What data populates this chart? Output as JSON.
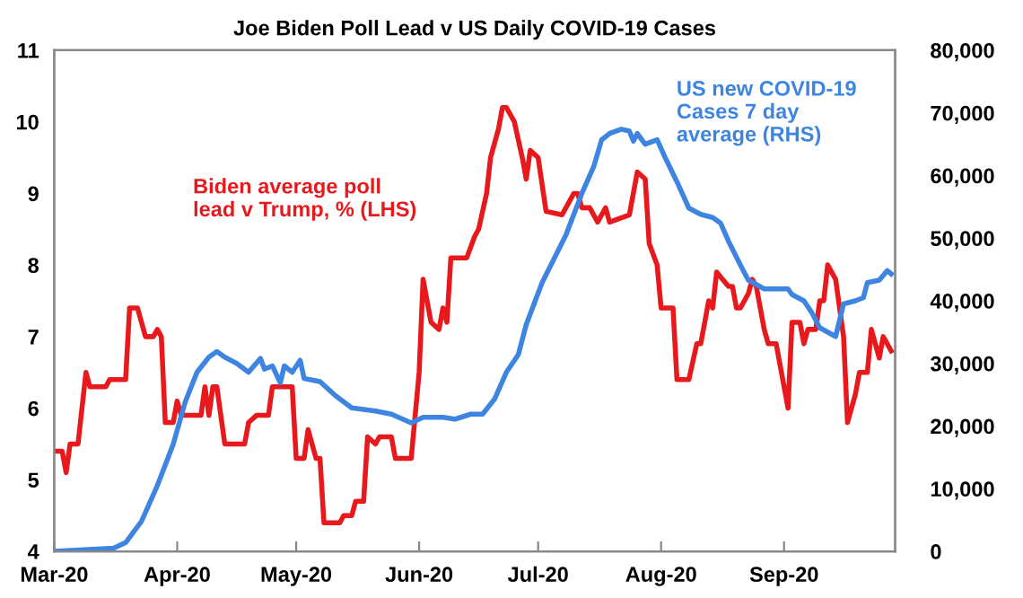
{
  "chart_data": {
    "type": "line",
    "title": "Joe Biden Poll Lead v US Daily COVID-19 Cases",
    "xlim": [
      "2020-03-01",
      "2020-09-29"
    ],
    "xticks": [
      {
        "value": "2020-03-01",
        "label": "Mar-20"
      },
      {
        "value": "2020-04-01",
        "label": "Apr-20"
      },
      {
        "value": "2020-05-01",
        "label": "May-20"
      },
      {
        "value": "2020-06-01",
        "label": "Jun-20"
      },
      {
        "value": "2020-07-01",
        "label": "Jul-20"
      },
      {
        "value": "2020-08-01",
        "label": "Aug-20"
      },
      {
        "value": "2020-09-01",
        "label": "Sep-20"
      }
    ],
    "ylim": [
      4,
      11
    ],
    "yticks": [
      4,
      5,
      6,
      7,
      8,
      9,
      10,
      11
    ],
    "y2lim": [
      0,
      80000
    ],
    "y2ticks": [
      0,
      {
        "value": 10000,
        "label": "10,000"
      },
      {
        "value": 20000,
        "label": "20,000"
      },
      {
        "value": 30000,
        "label": "30,000"
      },
      {
        "value": 40000,
        "label": "40,000"
      },
      {
        "value": 50000,
        "label": "50,000"
      },
      {
        "value": 60000,
        "label": "60,000"
      },
      {
        "value": 70000,
        "label": "70,000"
      },
      {
        "value": 80000,
        "label": "80,000"
      }
    ],
    "grid": false,
    "legend": false,
    "marker": "none",
    "line_style": "solid",
    "series": [
      {
        "name": "Biden average poll lead v Trump, % (LHS)",
        "color": "#e8191d",
        "x": [
          "2020-03-01",
          "2020-03-03",
          "2020-03-04",
          "2020-03-05",
          "2020-03-07",
          "2020-03-09",
          "2020-03-10",
          "2020-03-14",
          "2020-03-15",
          "2020-03-19",
          "2020-03-20",
          "2020-03-22",
          "2020-03-24",
          "2020-03-26",
          "2020-03-27",
          "2020-03-28",
          "2020-03-29",
          "2020-03-31",
          "2020-04-01",
          "2020-04-02",
          "2020-04-07",
          "2020-04-08",
          "2020-04-09",
          "2020-04-10",
          "2020-04-11",
          "2020-04-13",
          "2020-04-18",
          "2020-04-19",
          "2020-04-21",
          "2020-04-24",
          "2020-04-25",
          "2020-04-30",
          "2020-05-01",
          "2020-05-03",
          "2020-05-04",
          "2020-05-06",
          "2020-05-07",
          "2020-05-08",
          "2020-05-12",
          "2020-05-13",
          "2020-05-15",
          "2020-05-16",
          "2020-05-18",
          "2020-05-19",
          "2020-05-21",
          "2020-05-22",
          "2020-05-25",
          "2020-05-26",
          "2020-05-30",
          "2020-06-01",
          "2020-06-02",
          "2020-06-04",
          "2020-06-06",
          "2020-06-07",
          "2020-06-08",
          "2020-06-09",
          "2020-06-13",
          "2020-06-15",
          "2020-06-16",
          "2020-06-18",
          "2020-06-19",
          "2020-06-21",
          "2020-06-22",
          "2020-06-23",
          "2020-06-25",
          "2020-06-27",
          "2020-06-28",
          "2020-06-29",
          "2020-07-01",
          "2020-07-03",
          "2020-07-07",
          "2020-07-10",
          "2020-07-11",
          "2020-07-12",
          "2020-07-14",
          "2020-07-16",
          "2020-07-18",
          "2020-07-19",
          "2020-07-24",
          "2020-07-26",
          "2020-07-28",
          "2020-07-29",
          "2020-07-31",
          "2020-08-01",
          "2020-08-04",
          "2020-08-05",
          "2020-08-08",
          "2020-08-10",
          "2020-08-11",
          "2020-08-13",
          "2020-08-14",
          "2020-08-15",
          "2020-08-18",
          "2020-08-19",
          "2020-08-20",
          "2020-08-21",
          "2020-08-23",
          "2020-08-24",
          "2020-08-25",
          "2020-08-27",
          "2020-08-28",
          "2020-08-30",
          "2020-09-02",
          "2020-09-03",
          "2020-09-05",
          "2020-09-06",
          "2020-09-07",
          "2020-09-09",
          "2020-09-10",
          "2020-09-11",
          "2020-09-12",
          "2020-09-14",
          "2020-09-16",
          "2020-09-17",
          "2020-09-19",
          "2020-09-20",
          "2020-09-22",
          "2020-09-23",
          "2020-09-25",
          "2020-09-26",
          "2020-09-28"
        ],
        "values": [
          5.4,
          5.4,
          5.1,
          5.5,
          5.5,
          6.5,
          6.3,
          6.3,
          6.4,
          6.4,
          7.4,
          7.4,
          7.0,
          7.0,
          7.1,
          7.0,
          5.8,
          5.8,
          6.1,
          5.9,
          5.9,
          6.3,
          5.9,
          6.3,
          6.3,
          5.5,
          5.5,
          5.8,
          5.9,
          5.9,
          6.3,
          6.3,
          5.3,
          5.3,
          5.7,
          5.3,
          5.3,
          4.4,
          4.4,
          4.5,
          4.5,
          4.7,
          4.7,
          5.6,
          5.5,
          5.6,
          5.6,
          5.3,
          5.3,
          6.5,
          7.8,
          7.2,
          7.1,
          7.4,
          7.2,
          8.1,
          8.1,
          8.4,
          8.5,
          9.0,
          9.5,
          9.9,
          10.2,
          10.2,
          10.0,
          9.5,
          9.2,
          9.6,
          9.5,
          8.75,
          8.7,
          9.0,
          9.0,
          8.8,
          8.8,
          8.6,
          8.8,
          8.6,
          8.7,
          9.3,
          9.2,
          8.3,
          8.0,
          7.4,
          7.4,
          6.4,
          6.4,
          6.9,
          6.9,
          7.5,
          7.4,
          7.9,
          7.7,
          7.7,
          7.4,
          7.4,
          7.6,
          7.8,
          7.7,
          7.1,
          6.9,
          6.9,
          6.0,
          7.2,
          7.2,
          6.9,
          7.1,
          7.1,
          7.5,
          7.5,
          8.0,
          7.8,
          7.0,
          5.8,
          6.2,
          6.5,
          6.5,
          7.1,
          6.7,
          7.0,
          6.8
        ]
      },
      {
        "name": "US new COVID-19 Cases 7 day average (RHS)",
        "color": "#3d85e0",
        "axis": "y2",
        "x": [
          "2020-03-01",
          "2020-03-16",
          "2020-03-19",
          "2020-03-23",
          "2020-03-27",
          "2020-03-31",
          "2020-04-03",
          "2020-04-06",
          "2020-04-09",
          "2020-04-11",
          "2020-04-13",
          "2020-04-16",
          "2020-04-19",
          "2020-04-22",
          "2020-04-23",
          "2020-04-25",
          "2020-04-27",
          "2020-04-28",
          "2020-04-30",
          "2020-05-02",
          "2020-05-03",
          "2020-05-07",
          "2020-05-11",
          "2020-05-15",
          "2020-05-21",
          "2020-05-25",
          "2020-05-30",
          "2020-06-02",
          "2020-06-07",
          "2020-06-10",
          "2020-06-14",
          "2020-06-17",
          "2020-06-20",
          "2020-06-23",
          "2020-06-26",
          "2020-06-28",
          "2020-07-02",
          "2020-07-05",
          "2020-07-08",
          "2020-07-12",
          "2020-07-15",
          "2020-07-17",
          "2020-07-19",
          "2020-07-22",
          "2020-07-24",
          "2020-07-25",
          "2020-07-26",
          "2020-07-28",
          "2020-07-31",
          "2020-08-02",
          "2020-08-05",
          "2020-08-08",
          "2020-08-11",
          "2020-08-14",
          "2020-08-16",
          "2020-08-18",
          "2020-08-21",
          "2020-08-23",
          "2020-08-27",
          "2020-09-02",
          "2020-09-03",
          "2020-09-06",
          "2020-09-08",
          "2020-09-10",
          "2020-09-14",
          "2020-09-16",
          "2020-09-19",
          "2020-09-21",
          "2020-09-22",
          "2020-09-25",
          "2020-09-27",
          "2020-09-28"
        ],
        "values": [
          0,
          500,
          1400,
          4800,
          10500,
          17100,
          23800,
          28600,
          31000,
          31900,
          31000,
          30000,
          28600,
          30800,
          29100,
          29600,
          26900,
          29600,
          28600,
          30500,
          27600,
          27100,
          24800,
          22900,
          22400,
          21900,
          20500,
          21400,
          21400,
          21100,
          21900,
          21900,
          24300,
          28600,
          31400,
          36200,
          42900,
          46700,
          50500,
          57100,
          61400,
          65700,
          66700,
          67400,
          67100,
          65500,
          66700,
          65000,
          65700,
          62900,
          59000,
          54800,
          53800,
          53300,
          52400,
          49500,
          45700,
          43300,
          41900,
          41900,
          41000,
          40000,
          38100,
          35700,
          34300,
          39500,
          40000,
          40500,
          42900,
          43300,
          44800,
          44300
        ]
      }
    ]
  }
}
